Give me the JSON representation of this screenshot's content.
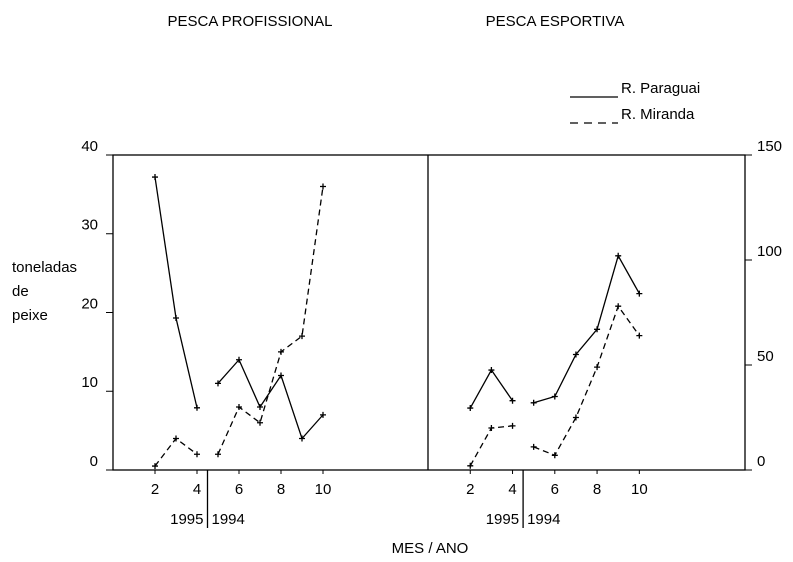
{
  "chart_data": [
    {
      "type": "line",
      "title": "PESCA PROFISSIONAL",
      "ylabel": [
        "toneladas",
        "de",
        "peixe"
      ],
      "xlabel": "MES / ANO",
      "xlim": [
        0,
        15
      ],
      "xticks": [
        2,
        4,
        6,
        8,
        10
      ],
      "ylim": [
        0,
        40
      ],
      "yticks": [
        0,
        10,
        20,
        30,
        40
      ],
      "periods": [
        {
          "label": "1995",
          "x": [
            2,
            3,
            4
          ]
        },
        {
          "label": "1994",
          "x": [
            5,
            6,
            7,
            8,
            9,
            10
          ]
        }
      ],
      "series": [
        {
          "name": "R. Paraguai",
          "color": "#000000",
          "dash": "solid",
          "values": [
            [
              37.2,
              19.3,
              7.9
            ],
            [
              11,
              14,
              8,
              12,
              4,
              7
            ]
          ]
        },
        {
          "name": "R. Miranda",
          "color": "#000000",
          "dash": "dashed",
          "values": [
            [
              0.5,
              4,
              2
            ],
            [
              2,
              8,
              6,
              15,
              17,
              36
            ]
          ]
        }
      ]
    },
    {
      "type": "line",
      "title": "PESCA ESPORTIVA",
      "legend": "upper right",
      "xlim": [
        0,
        15
      ],
      "xticks": [
        2,
        4,
        6,
        8,
        10
      ],
      "y2lim": [
        0,
        150
      ],
      "y2ticks": [
        0,
        50,
        100,
        150
      ],
      "periods": [
        {
          "label": "1995",
          "x": [
            2,
            3,
            4
          ]
        },
        {
          "label": "1994",
          "x": [
            5,
            6,
            7,
            8,
            9,
            10
          ]
        }
      ],
      "series": [
        {
          "name": "R. Paraguai",
          "color": "#000000",
          "dash": "solid",
          "axis": "y2",
          "values": [
            [
              29.5,
              47.6,
              33
            ],
            [
              32,
              35,
              55,
              67,
              102,
              84
            ]
          ]
        },
        {
          "name": "R. Miranda",
          "color": "#000000",
          "dash": "dashed",
          "axis": "y2",
          "values": [
            [
              2,
              20,
              21
            ],
            [
              11,
              7,
              25,
              49,
              78,
              64
            ]
          ]
        }
      ]
    }
  ]
}
